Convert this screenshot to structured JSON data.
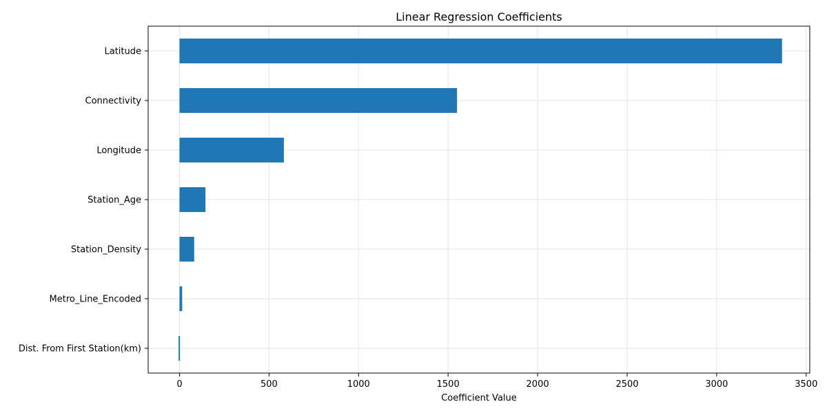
{
  "chart_data": {
    "type": "bar",
    "orientation": "horizontal",
    "title": "Linear Regression Coefficients",
    "xlabel": "Coefficient Value",
    "ylabel": "",
    "categories": [
      "Latitude",
      "Connectivity",
      "Longitude",
      "Station_Age",
      "Station_Density",
      "Metro_Line_Encoded",
      "Dist. From First Station(km)"
    ],
    "values": [
      3365,
      1550,
      583,
      145,
      82,
      15,
      -5
    ],
    "xlim": [
      -175,
      3520
    ],
    "xticks": [
      0,
      500,
      1000,
      1500,
      2000,
      2500,
      3000,
      3500
    ],
    "grid": true,
    "bar_color": "#1f77b4"
  }
}
